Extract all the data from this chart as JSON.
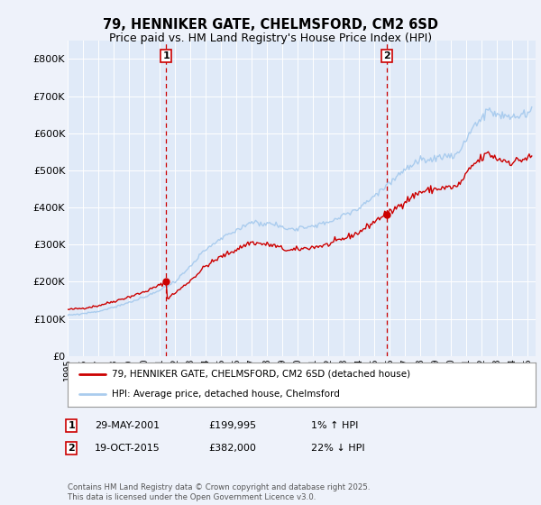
{
  "title": "79, HENNIKER GATE, CHELMSFORD, CM2 6SD",
  "subtitle": "Price paid vs. HM Land Registry's House Price Index (HPI)",
  "ylim": [
    0,
    850000
  ],
  "yticks": [
    0,
    100000,
    200000,
    300000,
    400000,
    500000,
    600000,
    700000,
    800000
  ],
  "ytick_labels": [
    "£0",
    "£100K",
    "£200K",
    "£300K",
    "£400K",
    "£500K",
    "£600K",
    "£700K",
    "£800K"
  ],
  "background_color": "#eef2fa",
  "plot_bg_color": "#e0eaf8",
  "grid_color": "#ffffff",
  "red_line_color": "#cc0000",
  "blue_line_color": "#aaccee",
  "marker1_date": 2001.41,
  "marker1_value": 199995,
  "marker2_date": 2015.8,
  "marker2_value": 382000,
  "legend_red_label": "79, HENNIKER GATE, CHELMSFORD, CM2 6SD (detached house)",
  "legend_blue_label": "HPI: Average price, detached house, Chelmsford",
  "footer": "Contains HM Land Registry data © Crown copyright and database right 2025.\nThis data is licensed under the Open Government Licence v3.0.",
  "title_fontsize": 10.5,
  "subtitle_fontsize": 9,
  "tick_fontsize": 8,
  "xmin": 1995.0,
  "xmax": 2025.5
}
